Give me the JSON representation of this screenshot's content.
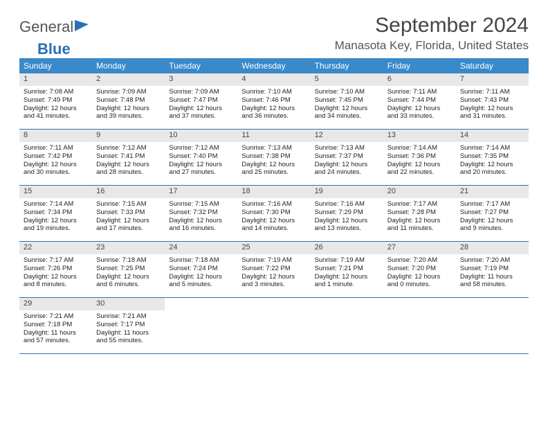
{
  "logo": {
    "text1": "General",
    "text2": "Blue"
  },
  "title": "September 2024",
  "location": "Manasota Key, Florida, United States",
  "colors": {
    "header_bg": "#3a89c9",
    "header_text": "#ffffff",
    "daynum_bg": "#e8e8e8",
    "week_border": "#3a6fa5",
    "logo_gray": "#555555",
    "logo_blue": "#2a6fb5"
  },
  "font_sizes": {
    "title": 30,
    "subtitle": 17,
    "dayhead": 12,
    "daynum": 11,
    "body": 9.5
  },
  "day_headers": [
    "Sunday",
    "Monday",
    "Tuesday",
    "Wednesday",
    "Thursday",
    "Friday",
    "Saturday"
  ],
  "sunrise_label": "Sunrise:",
  "sunset_label": "Sunset:",
  "daylight_label": "Daylight:",
  "days": [
    {
      "n": "1",
      "sunrise": "7:08 AM",
      "sunset": "7:49 PM",
      "daylight": "12 hours and 41 minutes."
    },
    {
      "n": "2",
      "sunrise": "7:09 AM",
      "sunset": "7:48 PM",
      "daylight": "12 hours and 39 minutes."
    },
    {
      "n": "3",
      "sunrise": "7:09 AM",
      "sunset": "7:47 PM",
      "daylight": "12 hours and 37 minutes."
    },
    {
      "n": "4",
      "sunrise": "7:10 AM",
      "sunset": "7:46 PM",
      "daylight": "12 hours and 36 minutes."
    },
    {
      "n": "5",
      "sunrise": "7:10 AM",
      "sunset": "7:45 PM",
      "daylight": "12 hours and 34 minutes."
    },
    {
      "n": "6",
      "sunrise": "7:11 AM",
      "sunset": "7:44 PM",
      "daylight": "12 hours and 33 minutes."
    },
    {
      "n": "7",
      "sunrise": "7:11 AM",
      "sunset": "7:43 PM",
      "daylight": "12 hours and 31 minutes."
    },
    {
      "n": "8",
      "sunrise": "7:11 AM",
      "sunset": "7:42 PM",
      "daylight": "12 hours and 30 minutes."
    },
    {
      "n": "9",
      "sunrise": "7:12 AM",
      "sunset": "7:41 PM",
      "daylight": "12 hours and 28 minutes."
    },
    {
      "n": "10",
      "sunrise": "7:12 AM",
      "sunset": "7:40 PM",
      "daylight": "12 hours and 27 minutes."
    },
    {
      "n": "11",
      "sunrise": "7:13 AM",
      "sunset": "7:38 PM",
      "daylight": "12 hours and 25 minutes."
    },
    {
      "n": "12",
      "sunrise": "7:13 AM",
      "sunset": "7:37 PM",
      "daylight": "12 hours and 24 minutes."
    },
    {
      "n": "13",
      "sunrise": "7:14 AM",
      "sunset": "7:36 PM",
      "daylight": "12 hours and 22 minutes."
    },
    {
      "n": "14",
      "sunrise": "7:14 AM",
      "sunset": "7:35 PM",
      "daylight": "12 hours and 20 minutes."
    },
    {
      "n": "15",
      "sunrise": "7:14 AM",
      "sunset": "7:34 PM",
      "daylight": "12 hours and 19 minutes."
    },
    {
      "n": "16",
      "sunrise": "7:15 AM",
      "sunset": "7:33 PM",
      "daylight": "12 hours and 17 minutes."
    },
    {
      "n": "17",
      "sunrise": "7:15 AM",
      "sunset": "7:32 PM",
      "daylight": "12 hours and 16 minutes."
    },
    {
      "n": "18",
      "sunrise": "7:16 AM",
      "sunset": "7:30 PM",
      "daylight": "12 hours and 14 minutes."
    },
    {
      "n": "19",
      "sunrise": "7:16 AM",
      "sunset": "7:29 PM",
      "daylight": "12 hours and 13 minutes."
    },
    {
      "n": "20",
      "sunrise": "7:17 AM",
      "sunset": "7:28 PM",
      "daylight": "12 hours and 11 minutes."
    },
    {
      "n": "21",
      "sunrise": "7:17 AM",
      "sunset": "7:27 PM",
      "daylight": "12 hours and 9 minutes."
    },
    {
      "n": "22",
      "sunrise": "7:17 AM",
      "sunset": "7:26 PM",
      "daylight": "12 hours and 8 minutes."
    },
    {
      "n": "23",
      "sunrise": "7:18 AM",
      "sunset": "7:25 PM",
      "daylight": "12 hours and 6 minutes."
    },
    {
      "n": "24",
      "sunrise": "7:18 AM",
      "sunset": "7:24 PM",
      "daylight": "12 hours and 5 minutes."
    },
    {
      "n": "25",
      "sunrise": "7:19 AM",
      "sunset": "7:22 PM",
      "daylight": "12 hours and 3 minutes."
    },
    {
      "n": "26",
      "sunrise": "7:19 AM",
      "sunset": "7:21 PM",
      "daylight": "12 hours and 1 minute."
    },
    {
      "n": "27",
      "sunrise": "7:20 AM",
      "sunset": "7:20 PM",
      "daylight": "12 hours and 0 minutes."
    },
    {
      "n": "28",
      "sunrise": "7:20 AM",
      "sunset": "7:19 PM",
      "daylight": "11 hours and 58 minutes."
    },
    {
      "n": "29",
      "sunrise": "7:21 AM",
      "sunset": "7:18 PM",
      "daylight": "11 hours and 57 minutes."
    },
    {
      "n": "30",
      "sunrise": "7:21 AM",
      "sunset": "7:17 PM",
      "daylight": "11 hours and 55 minutes."
    }
  ]
}
